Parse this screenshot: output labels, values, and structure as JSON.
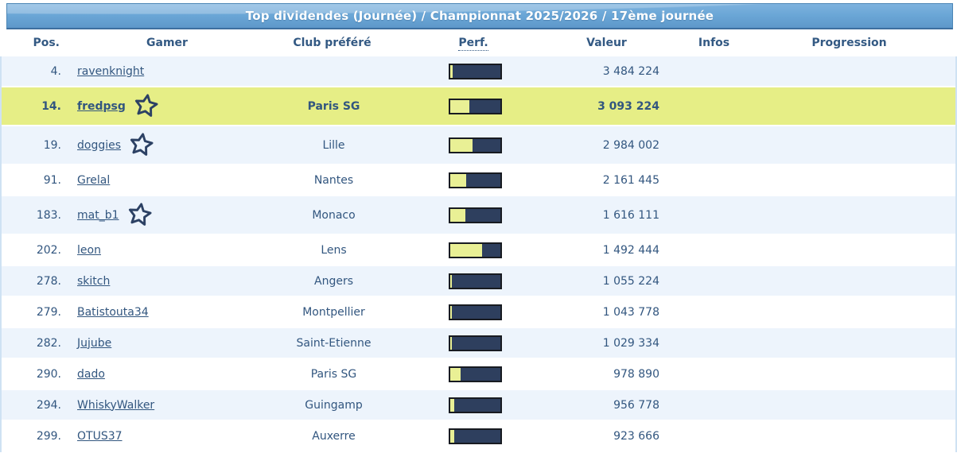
{
  "title": "Top dividendes (Journée) / Championnat 2025/2026 / 17ème journée",
  "columns": {
    "pos": "Pos.",
    "gamer": "Gamer",
    "club": "Club préféré",
    "perf": "Perf.",
    "value": "Valeur",
    "infos": "Infos",
    "progression": "Progression"
  },
  "colors": {
    "titlebar_blue": "#6aa6d6",
    "row_alt_blue": "#edf4fc",
    "highlight_yellow": "#e6ee86",
    "perf_bar_navy": "#2e3f5e",
    "perf_bar_fill": "#e9f095",
    "text_navy": "#32567f"
  },
  "table": {
    "rows": [
      {
        "pos": "4.",
        "gamer": "ravenknight",
        "star": false,
        "club": "",
        "perf_pct": 5,
        "value": "3 484 224",
        "highlighted": false,
        "shade": "blue"
      },
      {
        "pos": "14.",
        "gamer": "fredpsg",
        "star": true,
        "club": "Paris SG",
        "perf_pct": 39,
        "value": "3 093 224",
        "highlighted": true,
        "shade": "white"
      },
      {
        "pos": "19.",
        "gamer": "doggies",
        "star": true,
        "club": "Lille",
        "perf_pct": 46,
        "value": "2 984 002",
        "highlighted": false,
        "shade": "blue"
      },
      {
        "pos": "91.",
        "gamer": "Grelal",
        "star": false,
        "club": "Nantes",
        "perf_pct": 33,
        "value": "2 161 445",
        "highlighted": false,
        "shade": "white"
      },
      {
        "pos": "183.",
        "gamer": "mat_b1",
        "star": true,
        "club": "Monaco",
        "perf_pct": 31,
        "value": "1 616 111",
        "highlighted": false,
        "shade": "blue"
      },
      {
        "pos": "202.",
        "gamer": "leon",
        "star": false,
        "club": "Lens",
        "perf_pct": 65,
        "value": "1 492 444",
        "highlighted": false,
        "shade": "white"
      },
      {
        "pos": "278.",
        "gamer": "skitch",
        "star": false,
        "club": "Angers",
        "perf_pct": 4,
        "value": "1 055 224",
        "highlighted": false,
        "shade": "blue"
      },
      {
        "pos": "279.",
        "gamer": "Batistouta34",
        "star": false,
        "club": "Montpellier",
        "perf_pct": 4,
        "value": "1 043 778",
        "highlighted": false,
        "shade": "white"
      },
      {
        "pos": "282.",
        "gamer": "Jujube",
        "star": false,
        "club": "Saint-Etienne",
        "perf_pct": 4,
        "value": "1 029 334",
        "highlighted": false,
        "shade": "blue"
      },
      {
        "pos": "290.",
        "gamer": "dado",
        "star": false,
        "club": "Paris SG",
        "perf_pct": 22,
        "value": "978 890",
        "highlighted": false,
        "shade": "white"
      },
      {
        "pos": "294.",
        "gamer": "WhiskyWalker",
        "star": false,
        "club": "Guingamp",
        "perf_pct": 9,
        "value": "956 778",
        "highlighted": false,
        "shade": "blue"
      },
      {
        "pos": "299.",
        "gamer": "OTUS37",
        "star": false,
        "club": "Auxerre",
        "perf_pct": 9,
        "value": "923 666",
        "highlighted": false,
        "shade": "white"
      }
    ]
  }
}
